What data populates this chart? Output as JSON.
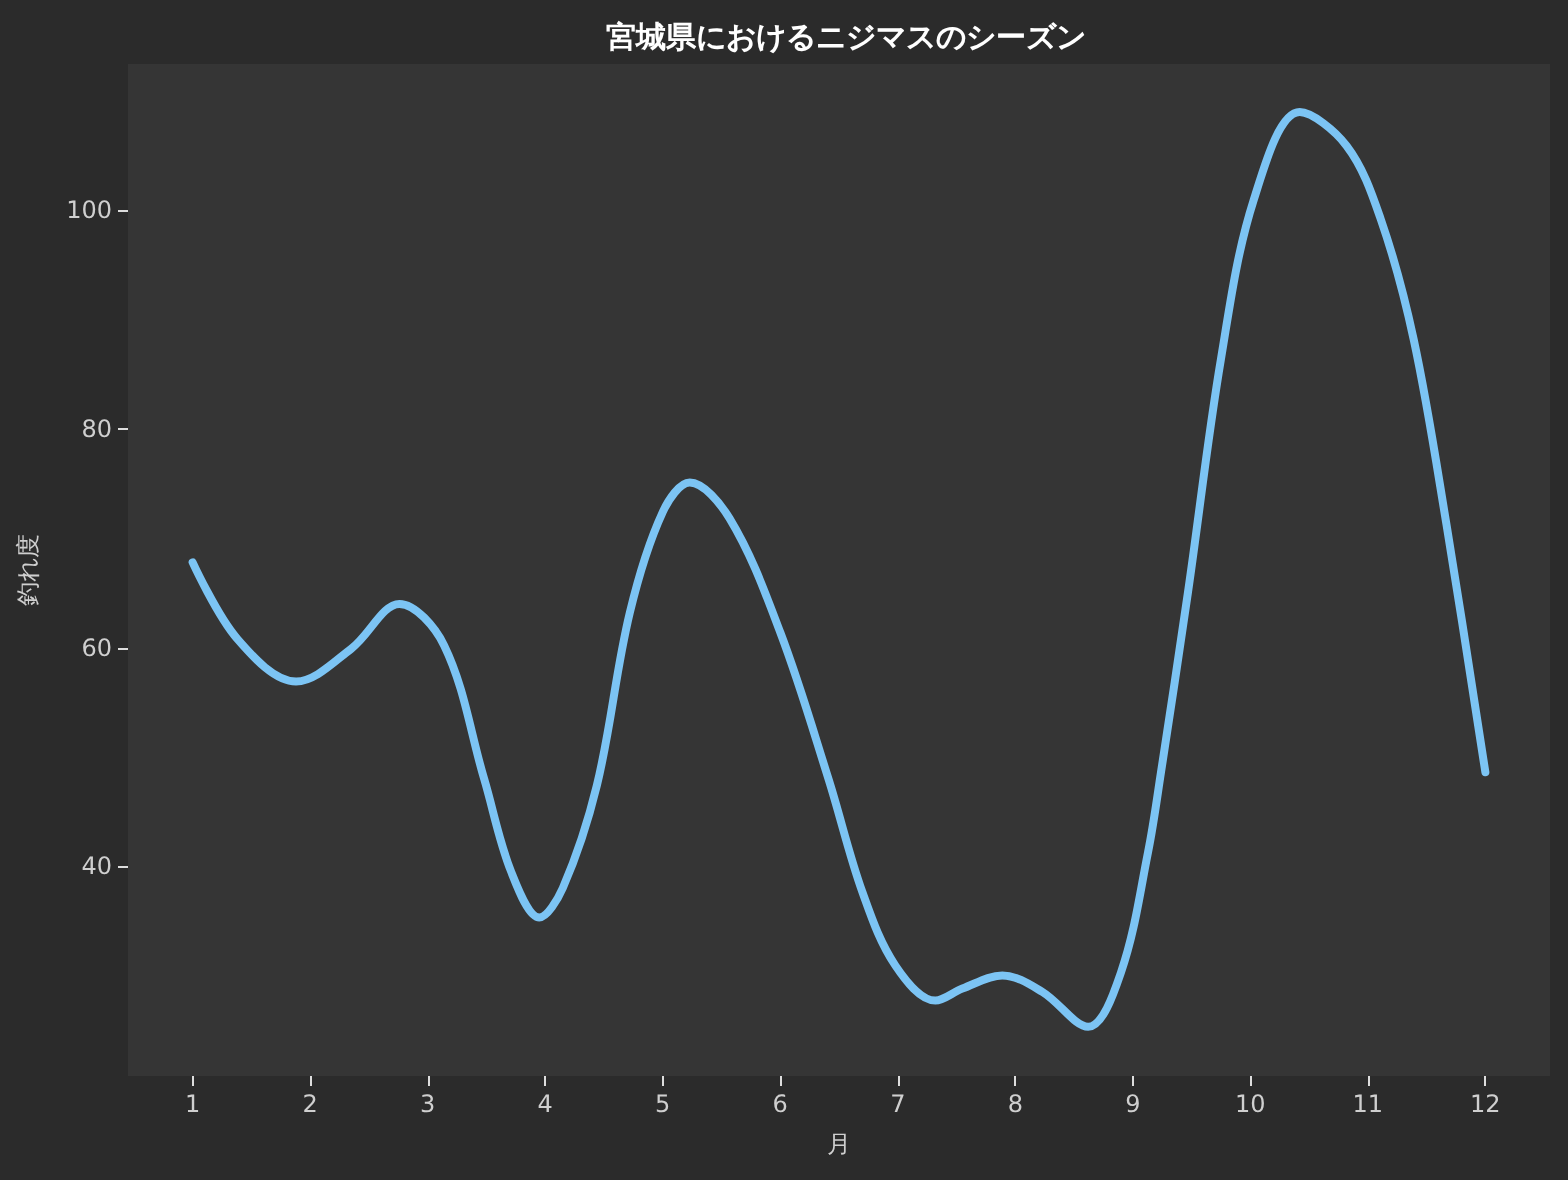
{
  "chart_data": {
    "type": "line",
    "title": "宮城県におけるニジマスのシーズン",
    "xlabel": "月",
    "ylabel": "釣れ度",
    "x": [
      1.0,
      1.38,
      1.88,
      2.35,
      2.76,
      3.14,
      3.48,
      3.71,
      3.95,
      4.15,
      4.44,
      4.72,
      5.0,
      5.23,
      5.57,
      6.0,
      6.41,
      6.7,
      6.98,
      7.32,
      7.55,
      7.89,
      8.23,
      8.62,
      8.9,
      9.13,
      9.24,
      9.47,
      9.75,
      10.03,
      10.42,
      10.82,
      11.11,
      11.39,
      11.67,
      12.0
    ],
    "values": [
      67.8,
      60.8,
      56.9,
      59.9,
      64.0,
      60.2,
      48.0,
      39.5,
      35.3,
      38.0,
      47.4,
      63.2,
      72.4,
      75.1,
      71.8,
      61.4,
      48.0,
      37.6,
      30.9,
      27.7,
      28.8,
      30.0,
      28.5,
      25.3,
      30.3,
      41.3,
      48.6,
      65.1,
      86.4,
      101.0,
      109.0,
      105.9,
      99.2,
      88.2,
      71.2,
      48.6
    ],
    "color": "#7cc4f4",
    "xlim": [
      0.45,
      12.55
    ],
    "ylim": [
      20.8,
      113.4
    ],
    "xticks": [
      1,
      2,
      3,
      4,
      5,
      6,
      7,
      8,
      9,
      10,
      11,
      12
    ],
    "yticks": [
      40,
      60,
      80,
      100
    ],
    "marker": "none",
    "line_style": "solid"
  }
}
